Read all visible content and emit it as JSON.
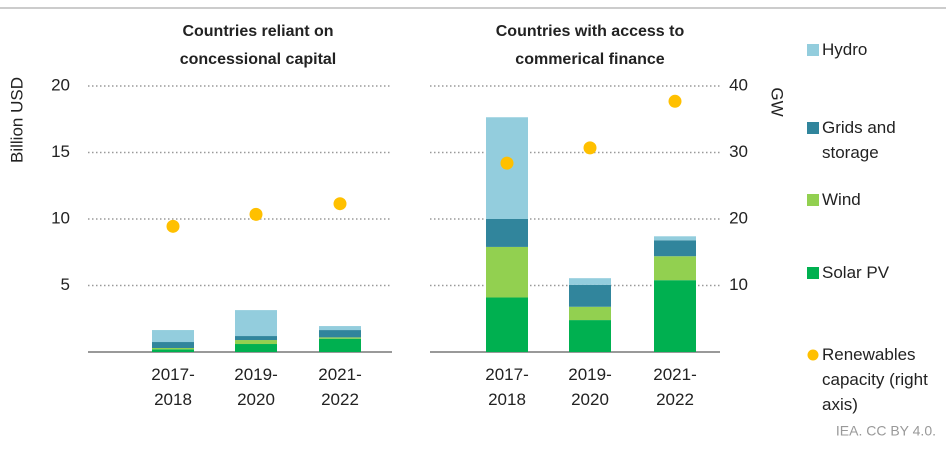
{
  "chart_data": [
    {
      "type": "bar",
      "title": "Countries reliant on\nconcessional capital",
      "categories": [
        "2017-\n2018",
        "2019-\n2020",
        "2021-\n2022"
      ],
      "series": [
        {
          "name": "Solar PV",
          "color": "#00b050",
          "values": [
            0.2,
            0.6,
            1.0
          ]
        },
        {
          "name": "Wind",
          "color": "#92d050",
          "values": [
            0.1,
            0.3,
            0.1
          ]
        },
        {
          "name": "Grids and storage",
          "color": "#31859c",
          "values": [
            0.45,
            0.3,
            0.55
          ]
        },
        {
          "name": "Hydro",
          "color": "#93cddd",
          "values": [
            0.9,
            1.95,
            0.3
          ]
        },
        {
          "name": "Renewables capacity (right axis)",
          "type": "scatter",
          "axis": "y2",
          "color": "#ffc000",
          "values": [
            18.9,
            20.7,
            22.3
          ]
        }
      ],
      "ylim": [
        0,
        20
      ],
      "yticks": [
        5,
        10,
        15,
        20
      ],
      "y2lim": [
        0,
        40
      ],
      "grid": true
    },
    {
      "type": "bar",
      "title": "Countries with access to\ncommerical finance",
      "categories": [
        "2017-\n2018",
        "2019-\n2020",
        "2021-\n2022"
      ],
      "series": [
        {
          "color": "#00b050",
          "values": [
            4.1,
            2.4,
            5.4
          ]
        },
        {
          "color": "#92d050",
          "values": [
            3.8,
            1.0,
            1.8
          ]
        },
        {
          "color": "#31859c",
          "values": [
            2.1,
            1.65,
            1.2
          ]
        },
        {
          "color": "#93cddd",
          "values": [
            7.65,
            0.5,
            0.3
          ]
        },
        {
          "type": "scatter",
          "axis": "y2",
          "color": "#ffc000",
          "values": [
            28.4,
            30.7,
            37.7
          ]
        }
      ],
      "ylim": [
        0,
        20
      ],
      "y2lim": [
        0,
        40
      ],
      "y2ticks": [
        10,
        20,
        30,
        40
      ],
      "grid": true
    }
  ],
  "y_label": "Billion USD",
  "y2_label": "GW",
  "legend_order": [
    3,
    2,
    1,
    0,
    4
  ],
  "source": "IEA. CC BY 4.0."
}
